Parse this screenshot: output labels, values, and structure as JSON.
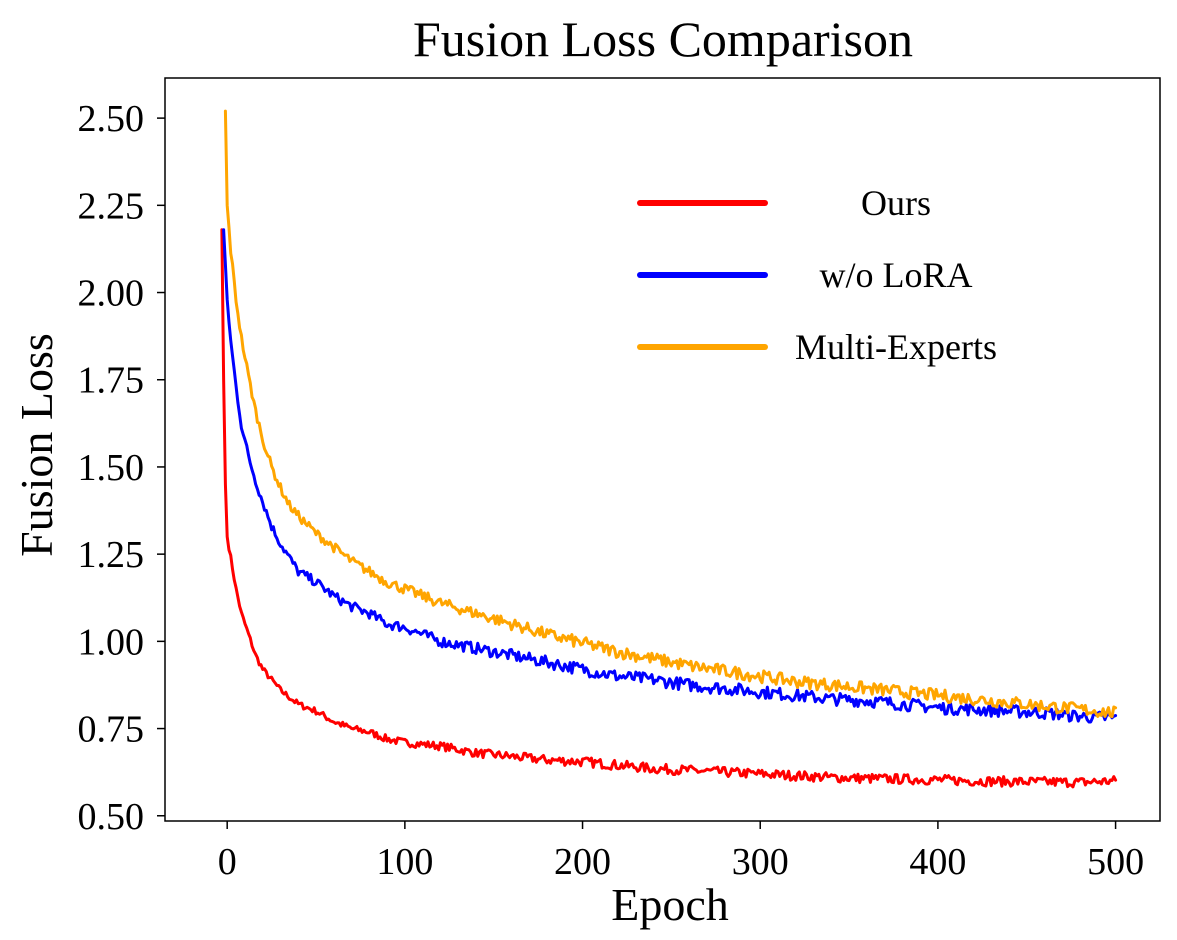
{
  "chart_data": {
    "type": "line",
    "title": "Fusion Loss Comparison",
    "xlabel": "Epoch",
    "ylabel": "Fusion Loss",
    "xlim": [
      -35,
      525
    ],
    "ylim": [
      0.485,
      2.615
    ],
    "x_ticks": [
      0,
      100,
      200,
      300,
      400,
      500
    ],
    "y_ticks": [
      0.5,
      0.75,
      1.0,
      1.25,
      1.5,
      1.75,
      2.0,
      2.25,
      2.5
    ],
    "x_tick_labels": [
      "0",
      "100",
      "200",
      "300",
      "400",
      "500"
    ],
    "y_tick_labels": [
      "0.50",
      "0.75",
      "1.00",
      "1.25",
      "1.50",
      "1.75",
      "2.00",
      "2.25",
      "2.50"
    ],
    "grid": false,
    "legend_position": "upper-right",
    "series": [
      {
        "name": "Ours",
        "color": "#ff0000",
        "x": [
          -3,
          -2,
          -1,
          0,
          2,
          5,
          8,
          12,
          16,
          20,
          25,
          30,
          35,
          40,
          50,
          60,
          70,
          80,
          90,
          100,
          120,
          140,
          160,
          180,
          200,
          220,
          240,
          260,
          280,
          300,
          320,
          340,
          360,
          380,
          400,
          420,
          440,
          460,
          480,
          500
        ],
        "y": [
          2.18,
          1.75,
          1.45,
          1.3,
          1.24,
          1.15,
          1.08,
          1.02,
          0.96,
          0.92,
          0.89,
          0.86,
          0.84,
          0.82,
          0.8,
          0.77,
          0.75,
          0.74,
          0.72,
          0.71,
          0.7,
          0.68,
          0.67,
          0.66,
          0.655,
          0.645,
          0.635,
          0.63,
          0.625,
          0.62,
          0.615,
          0.61,
          0.607,
          0.605,
          0.603,
          0.6,
          0.598,
          0.597,
          0.596,
          0.6
        ]
      },
      {
        "name": "w/o LoRA",
        "color": "#0000ff",
        "x": [
          -2,
          0,
          2,
          5,
          8,
          12,
          16,
          20,
          25,
          30,
          35,
          40,
          50,
          60,
          70,
          80,
          90,
          100,
          120,
          140,
          160,
          180,
          200,
          220,
          240,
          260,
          280,
          300,
          320,
          340,
          360,
          380,
          400,
          420,
          440,
          460,
          480,
          500
        ],
        "y": [
          2.18,
          1.98,
          1.86,
          1.73,
          1.62,
          1.53,
          1.46,
          1.4,
          1.33,
          1.28,
          1.24,
          1.2,
          1.17,
          1.13,
          1.1,
          1.08,
          1.05,
          1.04,
          1.0,
          0.98,
          0.96,
          0.94,
          0.92,
          0.9,
          0.89,
          0.875,
          0.865,
          0.855,
          0.845,
          0.835,
          0.83,
          0.82,
          0.81,
          0.805,
          0.8,
          0.795,
          0.785,
          0.78
        ]
      },
      {
        "name": "Multi-Experts",
        "color": "#ffa500",
        "x": [
          -1,
          0,
          2,
          5,
          8,
          12,
          16,
          20,
          25,
          30,
          35,
          40,
          50,
          60,
          70,
          80,
          90,
          100,
          120,
          140,
          160,
          180,
          200,
          220,
          240,
          260,
          280,
          300,
          320,
          340,
          360,
          380,
          400,
          420,
          440,
          460,
          480,
          500
        ],
        "y": [
          2.52,
          2.25,
          2.12,
          1.98,
          1.87,
          1.76,
          1.66,
          1.58,
          1.5,
          1.44,
          1.39,
          1.36,
          1.31,
          1.27,
          1.23,
          1.2,
          1.17,
          1.15,
          1.11,
          1.08,
          1.05,
          1.02,
          0.995,
          0.97,
          0.95,
          0.93,
          0.915,
          0.9,
          0.885,
          0.875,
          0.865,
          0.855,
          0.845,
          0.835,
          0.825,
          0.815,
          0.805,
          0.795
        ]
      }
    ]
  }
}
